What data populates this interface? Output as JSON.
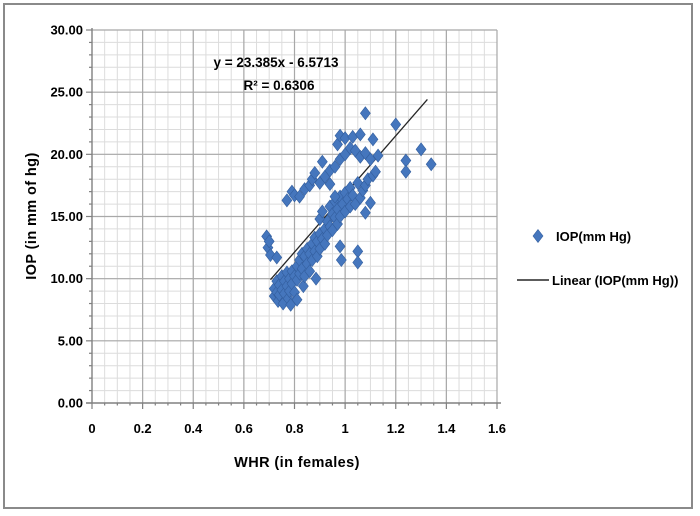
{
  "annotation": {
    "equation": "y = 23.385x - 6.5713",
    "r_squared": "R² = 0.6306"
  },
  "legend": {
    "items": [
      {
        "label": "IOP(mm Hg)",
        "marker": "diamond"
      },
      {
        "label": "Linear (IOP(mm Hg))",
        "marker": "line"
      }
    ]
  },
  "colors": {
    "marker": "#4576BD",
    "marker_edge": "#335E9E",
    "trendline": "#262626",
    "grid_minor": "#DCDCDC",
    "grid_major": "#A8A8A8",
    "axis": "#808080"
  },
  "chart_data": {
    "type": "scatter",
    "title": "",
    "xlabel": "WHR (in females)",
    "ylabel": "IOP (in mm of hg)",
    "xlim": [
      0,
      1.6
    ],
    "ylim": [
      0,
      30
    ],
    "x_major_step": 0.2,
    "x_minor_step": 0.05,
    "y_major_step": 5,
    "y_minor_step": 1,
    "grid": true,
    "legend_position": "right",
    "x_tick_labels": [
      "0",
      "0.2",
      "0.4",
      "0.6",
      "0.8",
      "1",
      "1.2",
      "1.4",
      "1.6"
    ],
    "y_tick_labels": [
      "0.00",
      "5.00",
      "10.00",
      "15.00",
      "20.00",
      "25.00",
      "30.00"
    ],
    "series": [
      {
        "name": "IOP(mm Hg)",
        "marker": "diamond",
        "points": [
          [
            0.69,
            13.4
          ],
          [
            0.695,
            12.5
          ],
          [
            0.7,
            13.0
          ],
          [
            0.705,
            11.9
          ],
          [
            0.73,
            11.7
          ],
          [
            0.72,
            9.2
          ],
          [
            0.72,
            8.6
          ],
          [
            0.73,
            9.8
          ],
          [
            0.73,
            8.9
          ],
          [
            0.735,
            8.2
          ],
          [
            0.74,
            9.5
          ],
          [
            0.74,
            8.7
          ],
          [
            0.75,
            10.2
          ],
          [
            0.75,
            9.1
          ],
          [
            0.755,
            8.0
          ],
          [
            0.76,
            9.8
          ],
          [
            0.76,
            8.8
          ],
          [
            0.77,
            10.5
          ],
          [
            0.77,
            9.4
          ],
          [
            0.775,
            8.4
          ],
          [
            0.78,
            10.0
          ],
          [
            0.78,
            9.0
          ],
          [
            0.785,
            7.9
          ],
          [
            0.79,
            10.6
          ],
          [
            0.79,
            9.6
          ],
          [
            0.8,
            10.2
          ],
          [
            0.8,
            8.9
          ],
          [
            0.81,
            8.3
          ],
          [
            0.81,
            11.0
          ],
          [
            0.81,
            9.9
          ],
          [
            0.82,
            11.5
          ],
          [
            0.82,
            10.4
          ],
          [
            0.83,
            12.0
          ],
          [
            0.83,
            10.8
          ],
          [
            0.835,
            9.4
          ],
          [
            0.84,
            11.8
          ],
          [
            0.84,
            10.2
          ],
          [
            0.85,
            12.4
          ],
          [
            0.85,
            11.2
          ],
          [
            0.86,
            12.0
          ],
          [
            0.86,
            10.6
          ],
          [
            0.87,
            12.8
          ],
          [
            0.87,
            11.5
          ],
          [
            0.88,
            13.3
          ],
          [
            0.88,
            12.2
          ],
          [
            0.885,
            10.0
          ],
          [
            0.89,
            13.0
          ],
          [
            0.89,
            11.8
          ],
          [
            0.9,
            13.6
          ],
          [
            0.9,
            12.4
          ],
          [
            0.91,
            13.2
          ],
          [
            0.92,
            14.0
          ],
          [
            0.92,
            12.8
          ],
          [
            0.93,
            13.5
          ],
          [
            0.9,
            14.8
          ],
          [
            0.91,
            15.4
          ],
          [
            0.93,
            14.6
          ],
          [
            0.94,
            15.8
          ],
          [
            0.94,
            14.2
          ],
          [
            0.95,
            15.2
          ],
          [
            0.95,
            13.9
          ],
          [
            0.96,
            16.2
          ],
          [
            0.96,
            14.9
          ],
          [
            0.97,
            15.6
          ],
          [
            0.97,
            14.4
          ],
          [
            0.98,
            16.6
          ],
          [
            0.98,
            15.0
          ],
          [
            0.98,
            12.6
          ],
          [
            0.985,
            11.5
          ],
          [
            0.99,
            16.0
          ],
          [
            1.0,
            15.4
          ],
          [
            1.0,
            16.9
          ],
          [
            1.01,
            16.4
          ],
          [
            1.02,
            15.8
          ],
          [
            1.02,
            17.3
          ],
          [
            1.03,
            16.7
          ],
          [
            1.04,
            16.0
          ],
          [
            1.05,
            12.2
          ],
          [
            1.05,
            11.3
          ],
          [
            1.05,
            17.7
          ],
          [
            1.06,
            16.5
          ],
          [
            1.07,
            17.1
          ],
          [
            1.08,
            15.3
          ],
          [
            1.08,
            17.5
          ],
          [
            1.09,
            18.0
          ],
          [
            1.1,
            16.1
          ],
          [
            1.11,
            18.3
          ],
          [
            0.77,
            16.3
          ],
          [
            0.79,
            17.0
          ],
          [
            0.8,
            16.7
          ],
          [
            0.82,
            16.6
          ],
          [
            0.84,
            17.2
          ],
          [
            0.86,
            17.5
          ],
          [
            0.87,
            18.0
          ],
          [
            0.88,
            18.5
          ],
          [
            0.9,
            17.7
          ],
          [
            0.91,
            19.4
          ],
          [
            0.92,
            18.2
          ],
          [
            0.94,
            18.7
          ],
          [
            0.94,
            17.6
          ],
          [
            0.96,
            19.0
          ],
          [
            0.96,
            16.6
          ],
          [
            0.97,
            20.8
          ],
          [
            0.98,
            19.6
          ],
          [
            0.98,
            21.5
          ],
          [
            1.0,
            21.3
          ],
          [
            1.0,
            20.0
          ],
          [
            1.02,
            20.5
          ],
          [
            1.03,
            21.4
          ],
          [
            1.04,
            20.3
          ],
          [
            1.06,
            21.6
          ],
          [
            1.06,
            19.8
          ],
          [
            1.08,
            20.1
          ],
          [
            1.08,
            23.3
          ],
          [
            1.1,
            19.6
          ],
          [
            1.11,
            21.2
          ],
          [
            1.12,
            18.6
          ],
          [
            1.13,
            19.9
          ],
          [
            1.2,
            22.4
          ],
          [
            1.24,
            19.5
          ],
          [
            1.24,
            18.6
          ],
          [
            1.3,
            20.4
          ],
          [
            1.34,
            19.2
          ]
        ]
      }
    ],
    "trendline": {
      "label": "Linear (IOP(mm Hg))",
      "slope": 23.385,
      "intercept": -6.5713,
      "x_range": [
        0.705,
        1.325
      ]
    }
  }
}
